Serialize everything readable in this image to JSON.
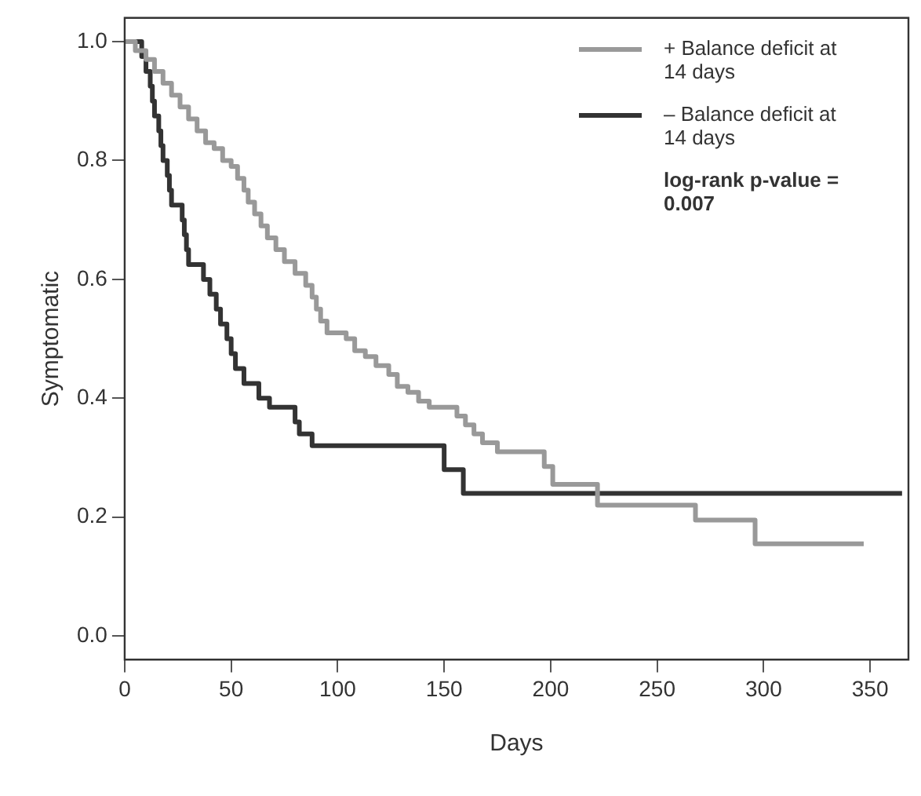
{
  "chart_data": {
    "type": "step",
    "xlabel": "Days",
    "ylabel": "Symptomatic",
    "xlim": [
      0,
      368
    ],
    "xticks": [
      0,
      50,
      100,
      150,
      200,
      250,
      300,
      350
    ],
    "ylim": [
      -0.04,
      1.04
    ],
    "yticks": [
      {
        "value": 0,
        "label": "0.0"
      },
      {
        "value": 0.2,
        "label": "0.2"
      },
      {
        "value": 0.4,
        "label": "0.4"
      },
      {
        "value": 0.6,
        "label": "0.6"
      },
      {
        "value": 0.8,
        "label": "0.8"
      },
      {
        "value": 1,
        "label": "1.0"
      }
    ],
    "grid": false,
    "legend": "top right",
    "line_style": "solid",
    "marker": "none",
    "series": [
      {
        "name": "+ Balance deficit at 14 days",
        "color": "#999999",
        "x": [
          0,
          5,
          10,
          14,
          18,
          22,
          26,
          30,
          34,
          38,
          42,
          46,
          50,
          53,
          56,
          58,
          61,
          64,
          67,
          71,
          75,
          80,
          85,
          88,
          90,
          92,
          95,
          104,
          108,
          113,
          118,
          124,
          128,
          133,
          138,
          143,
          156,
          160,
          164,
          168,
          175,
          197,
          201,
          222,
          268,
          296,
          347
        ],
        "values": [
          1.0,
          0.985,
          0.97,
          0.95,
          0.93,
          0.91,
          0.89,
          0.87,
          0.85,
          0.83,
          0.82,
          0.8,
          0.79,
          0.77,
          0.75,
          0.73,
          0.71,
          0.69,
          0.67,
          0.65,
          0.63,
          0.61,
          0.59,
          0.57,
          0.55,
          0.53,
          0.51,
          0.5,
          0.48,
          0.47,
          0.455,
          0.44,
          0.42,
          0.41,
          0.395,
          0.385,
          0.37,
          0.355,
          0.34,
          0.325,
          0.31,
          0.285,
          0.255,
          0.22,
          0.195,
          0.155,
          0.155
        ]
      },
      {
        "name": "– Balance deficit at 14 days",
        "color": "#333333",
        "x": [
          0,
          8,
          10,
          12,
          13,
          14,
          16,
          17,
          18,
          20,
          21,
          22,
          27,
          28,
          29,
          30,
          37,
          40,
          43,
          45,
          48,
          50,
          52,
          56,
          63,
          68,
          80,
          82,
          88,
          150,
          159,
          365
        ],
        "values": [
          1.0,
          0.975,
          0.95,
          0.925,
          0.9,
          0.875,
          0.85,
          0.825,
          0.8,
          0.775,
          0.75,
          0.725,
          0.7,
          0.675,
          0.65,
          0.625,
          0.6,
          0.575,
          0.55,
          0.525,
          0.5,
          0.475,
          0.45,
          0.425,
          0.4,
          0.385,
          0.36,
          0.34,
          0.32,
          0.28,
          0.24,
          0.24
        ]
      }
    ],
    "annotations": [
      "log-rank p-value = 0.007"
    ]
  }
}
